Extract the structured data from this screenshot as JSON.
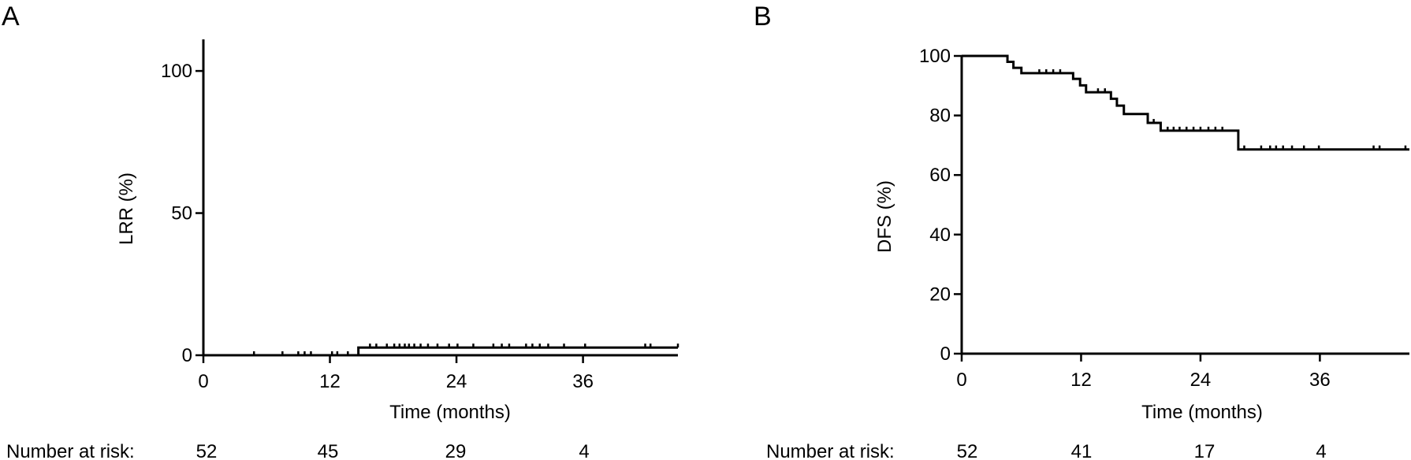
{
  "panels": {
    "A": {
      "letter": "A"
    },
    "B": {
      "letter": "B"
    }
  },
  "risk_label": "Number at risk:",
  "chart_data": [
    {
      "panel": "A",
      "type": "line",
      "step": true,
      "xlabel": "Time (months)",
      "ylabel": "LRR (%)",
      "xlim": [
        0,
        45
      ],
      "ylim": [
        0,
        110
      ],
      "xticks": [
        "0",
        "12",
        "24",
        "36"
      ],
      "xtick_values": [
        0,
        12,
        24,
        36
      ],
      "yticks": [
        "0",
        "50",
        "100"
      ],
      "ytick_values": [
        0,
        50,
        100
      ],
      "series": [
        {
          "x": [
            0,
            14.7,
            45
          ],
          "y": [
            0,
            2.7,
            2.7
          ],
          "censored": [
            {
              "x": 4.8,
              "y": 0
            },
            {
              "x": 7.5,
              "y": 0
            },
            {
              "x": 9.0,
              "y": 0
            },
            {
              "x": 9.6,
              "y": 0
            },
            {
              "x": 10.2,
              "y": 0
            },
            {
              "x": 12.2,
              "y": 0
            },
            {
              "x": 12.7,
              "y": 0
            },
            {
              "x": 13.7,
              "y": 0
            },
            {
              "x": 15.8,
              "y": 2.7
            },
            {
              "x": 16.4,
              "y": 2.7
            },
            {
              "x": 17.4,
              "y": 2.7
            },
            {
              "x": 18.1,
              "y": 2.7
            },
            {
              "x": 18.6,
              "y": 2.7
            },
            {
              "x": 19.1,
              "y": 2.7
            },
            {
              "x": 19.5,
              "y": 2.7
            },
            {
              "x": 20.0,
              "y": 2.7
            },
            {
              "x": 20.6,
              "y": 2.7
            },
            {
              "x": 21.3,
              "y": 2.7
            },
            {
              "x": 22.2,
              "y": 2.7
            },
            {
              "x": 23.3,
              "y": 2.7
            },
            {
              "x": 24.1,
              "y": 2.7
            },
            {
              "x": 25.6,
              "y": 2.7
            },
            {
              "x": 27.5,
              "y": 2.7
            },
            {
              "x": 28.3,
              "y": 2.7
            },
            {
              "x": 29.0,
              "y": 2.7
            },
            {
              "x": 30.6,
              "y": 2.7
            },
            {
              "x": 31.2,
              "y": 2.7
            },
            {
              "x": 31.9,
              "y": 2.7
            },
            {
              "x": 32.7,
              "y": 2.7
            },
            {
              "x": 34.2,
              "y": 2.7
            },
            {
              "x": 36.2,
              "y": 2.7
            },
            {
              "x": 41.9,
              "y": 2.7
            },
            {
              "x": 42.4,
              "y": 2.7
            },
            {
              "x": 45.0,
              "y": 2.7
            }
          ]
        }
      ],
      "number_at_risk": [
        "52",
        "45",
        "29",
        "4"
      ]
    },
    {
      "panel": "B",
      "type": "line",
      "step": true,
      "xlabel": "Time (months)",
      "ylabel": "DFS (%)",
      "xlim": [
        0,
        45
      ],
      "ylim": [
        0,
        100
      ],
      "xticks": [
        "0",
        "12",
        "24",
        "36"
      ],
      "xtick_values": [
        0,
        12,
        24,
        36
      ],
      "yticks": [
        "0",
        "20",
        "40",
        "60",
        "80",
        "100"
      ],
      "ytick_values": [
        0,
        20,
        40,
        60,
        80,
        100
      ],
      "series": [
        {
          "x": [
            0,
            4.6,
            5.2,
            6.0,
            11.2,
            11.9,
            12.5,
            15.0,
            15.6,
            16.3,
            17.0,
            18.7,
            20.0,
            27.8,
            45
          ],
          "y": [
            100,
            98,
            96,
            94.2,
            92.3,
            90.1,
            87.8,
            85.6,
            83.3,
            80.5,
            80.5,
            77.5,
            74.9,
            68.6,
            68.6
          ],
          "censored": [
            {
              "x": 7.8,
              "y": 94.2
            },
            {
              "x": 8.5,
              "y": 94.2
            },
            {
              "x": 9.2,
              "y": 94.2
            },
            {
              "x": 9.9,
              "y": 94.2
            },
            {
              "x": 13.7,
              "y": 87.8
            },
            {
              "x": 14.4,
              "y": 87.8
            },
            {
              "x": 19.3,
              "y": 77.5
            },
            {
              "x": 20.7,
              "y": 74.9
            },
            {
              "x": 21.3,
              "y": 74.9
            },
            {
              "x": 21.9,
              "y": 74.9
            },
            {
              "x": 22.6,
              "y": 74.9
            },
            {
              "x": 23.3,
              "y": 74.9
            },
            {
              "x": 24.0,
              "y": 74.9
            },
            {
              "x": 24.8,
              "y": 74.9
            },
            {
              "x": 25.5,
              "y": 74.9
            },
            {
              "x": 26.2,
              "y": 74.9
            },
            {
              "x": 28.4,
              "y": 68.6
            },
            {
              "x": 30.1,
              "y": 68.6
            },
            {
              "x": 31.0,
              "y": 68.6
            },
            {
              "x": 31.6,
              "y": 68.6
            },
            {
              "x": 32.3,
              "y": 68.6
            },
            {
              "x": 33.2,
              "y": 68.6
            },
            {
              "x": 34.4,
              "y": 68.6
            },
            {
              "x": 35.9,
              "y": 68.6
            },
            {
              "x": 41.4,
              "y": 68.6
            },
            {
              "x": 42.0,
              "y": 68.6
            },
            {
              "x": 44.6,
              "y": 68.6
            }
          ]
        }
      ],
      "number_at_risk": [
        "52",
        "41",
        "17",
        "4"
      ]
    }
  ]
}
